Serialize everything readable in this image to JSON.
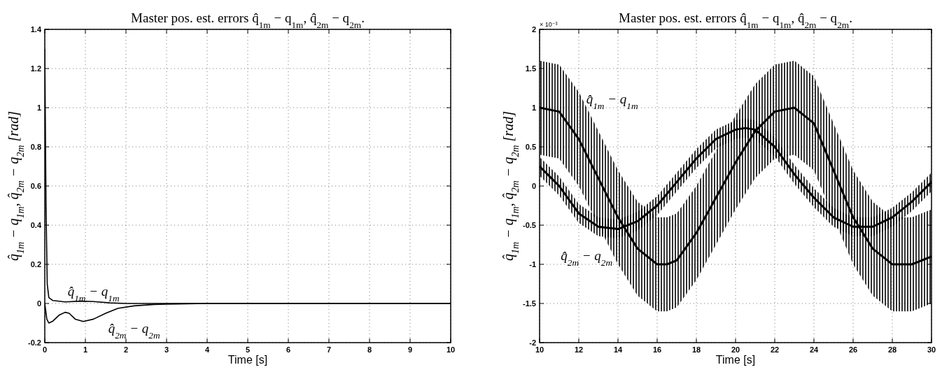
{
  "chart_data": [
    {
      "type": "line",
      "title": "Master pos. est. errors q̂$_{1m}$ − q$_{1m}$,  q̂$_{2m}$ − q$_{2m}$.",
      "xlabel": "Time [s]",
      "ylabel": "q̂$_{1m}$ − q$_{1m}$,  q̂$_{2m}$ − q$_{2m}$ [rad]",
      "xlim": [
        0,
        10
      ],
      "xticks": [
        0,
        1,
        2,
        3,
        4,
        5,
        6,
        7,
        8,
        9,
        10
      ],
      "ylim": [
        -0.2,
        1.4
      ],
      "yticks": [
        -0.2,
        0,
        0.2,
        0.4,
        0.6,
        0.8,
        1,
        1.2,
        1.4
      ],
      "grid": true,
      "line_style": "solid",
      "series": [
        {
          "color": "#000000",
          "x": [
            0,
            0.03,
            0.06,
            0.1,
            0.2,
            0.5,
            0.9,
            1.2,
            1.6,
            2,
            3,
            10
          ],
          "values": [
            1.3,
            0.5,
            0.1,
            0.03,
            0.015,
            0.008,
            0.012,
            0.01,
            0.003,
            0,
            0,
            0
          ]
        },
        {
          "color": "#000000",
          "x": [
            0,
            0.05,
            0.1,
            0.2,
            0.35,
            0.5,
            0.6,
            0.75,
            0.95,
            1.2,
            1.5,
            1.8,
            2.2,
            2.7,
            3,
            4,
            10
          ],
          "values": [
            0,
            -0.08,
            -0.1,
            -0.09,
            -0.06,
            -0.045,
            -0.05,
            -0.08,
            -0.092,
            -0.08,
            -0.05,
            -0.025,
            -0.012,
            -0.005,
            -0.003,
            0,
            0
          ]
        }
      ],
      "annotations": [
        "q̂$_{1m}$ − q$_{1m}$",
        "q̂$_{2m}$ − q$_{2m}$"
      ]
    },
    {
      "type": "line",
      "title": "Master pos. est. errors q̂$_{1m}$ − q$_{1m}$,  q̂$_{2m}$ − q$_{2m}$.",
      "xlabel": "Time [s]",
      "ylabel": "q̂$_{1m}$ − q$_{1m}$,  q̂$_{2m}$ − q$_{2m}$ [rad]",
      "xlim": [
        10,
        30
      ],
      "xticks": [
        10,
        12,
        14,
        16,
        18,
        20,
        22,
        24,
        26,
        28,
        30
      ],
      "ylim": [
        -2,
        2
      ],
      "yticks": [
        -2,
        -1.5,
        -1,
        -0.5,
        0,
        0.5,
        1,
        1.5,
        2
      ],
      "grid": true,
      "line_style": "solid",
      "series": [
        {
          "color": "#000000",
          "x": [
            10,
            11,
            12,
            13,
            14,
            15,
            16,
            16.5,
            17,
            18,
            19,
            20,
            21,
            22,
            23,
            24,
            25,
            26,
            27,
            28,
            29,
            30
          ],
          "values": [
            1.0,
            0.95,
            0.6,
            0.1,
            -0.4,
            -0.8,
            -1.0,
            -1.0,
            -0.95,
            -0.6,
            -0.15,
            0.3,
            0.7,
            0.95,
            1.0,
            0.8,
            0.2,
            -0.4,
            -0.8,
            -1.0,
            -1.0,
            -0.9
          ],
          "lower": [
            0.4,
            0.35,
            0,
            -0.5,
            -1.0,
            -1.4,
            -1.6,
            -1.6,
            -1.55,
            -1.2,
            -0.75,
            -0.3,
            0.1,
            0.35,
            0.4,
            0.2,
            -0.4,
            -1.0,
            -1.4,
            -1.6,
            -1.6,
            -1.5
          ],
          "upper": [
            1.6,
            1.55,
            1.2,
            0.7,
            0.2,
            -0.2,
            -0.4,
            -0.4,
            -0.35,
            0,
            0.45,
            0.9,
            1.3,
            1.55,
            1.6,
            1.4,
            0.8,
            0.2,
            -0.2,
            -0.4,
            -0.4,
            -0.3
          ]
        },
        {
          "color": "#000000",
          "x": [
            10,
            11,
            12,
            13,
            14,
            15,
            16,
            17,
            18,
            19,
            20,
            20.5,
            21,
            22,
            23,
            24,
            25,
            26,
            27,
            28,
            29,
            30
          ],
          "values": [
            0.25,
            0,
            -0.35,
            -0.52,
            -0.55,
            -0.45,
            -0.25,
            0.05,
            0.35,
            0.6,
            0.72,
            0.74,
            0.72,
            0.5,
            0.15,
            -0.15,
            -0.4,
            -0.52,
            -0.52,
            -0.4,
            -0.2,
            0.05
          ],
          "lower": [
            0.13,
            -0.12,
            -0.47,
            -0.64,
            -0.67,
            -0.57,
            -0.37,
            -0.07,
            0.23,
            0.48,
            0.6,
            0.62,
            0.6,
            0.38,
            0.03,
            -0.27,
            -0.52,
            -0.64,
            -0.64,
            -0.52,
            -0.32,
            -0.07
          ],
          "upper": [
            0.37,
            0.12,
            -0.23,
            -0.4,
            -0.43,
            -0.33,
            -0.13,
            0.17,
            0.47,
            0.72,
            0.84,
            0.86,
            0.84,
            0.62,
            0.27,
            -0.03,
            -0.28,
            -0.4,
            -0.4,
            -0.28,
            -0.08,
            0.17
          ]
        }
      ],
      "annotations": [
        "× 10⁻³",
        "q̂$_{1m}$ − q$_{1m}$",
        "q̂$_{2m}$ − q$_{2m}$"
      ]
    }
  ]
}
